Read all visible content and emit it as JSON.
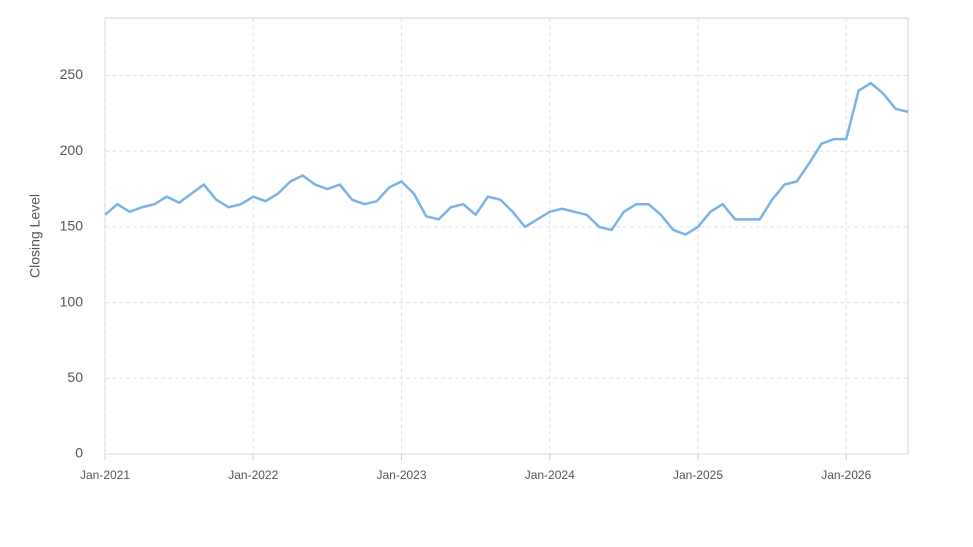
{
  "chart_data": {
    "type": "line",
    "y_label": "Closing Level",
    "x": [
      "2021-01",
      "2021-02",
      "2021-03",
      "2021-04",
      "2021-05",
      "2021-06",
      "2021-07",
      "2021-08",
      "2021-09",
      "2021-10",
      "2021-11",
      "2021-12",
      "2022-01",
      "2022-02",
      "2022-03",
      "2022-04",
      "2022-05",
      "2022-06",
      "2022-07",
      "2022-08",
      "2022-09",
      "2022-10",
      "2022-11",
      "2022-12",
      "2023-01",
      "2023-02",
      "2023-03",
      "2023-04",
      "2023-05",
      "2023-06",
      "2023-07",
      "2023-08",
      "2023-09",
      "2023-10",
      "2023-11",
      "2023-12",
      "2024-01",
      "2024-02",
      "2024-03",
      "2024-04",
      "2024-05",
      "2024-06",
      "2024-07",
      "2024-08",
      "2024-09",
      "2024-10",
      "2024-11",
      "2024-12",
      "2025-01",
      "2025-02",
      "2025-03",
      "2025-04",
      "2025-05",
      "2025-06",
      "2025-07",
      "2025-08",
      "2025-09",
      "2025-10",
      "2025-11",
      "2025-12",
      "2026-01",
      "2026-02",
      "2026-03",
      "2026-04",
      "2026-05",
      "2026-06"
    ],
    "series": [
      {
        "color": "#7ab3e6",
        "values": [
          158,
          165,
          160,
          163,
          165,
          170,
          166,
          172,
          178,
          168,
          163,
          165,
          170,
          167,
          172,
          180,
          184,
          178,
          175,
          178,
          168,
          165,
          167,
          176,
          180,
          172,
          157,
          155,
          163,
          165,
          158,
          170,
          168,
          160,
          150,
          155,
          160,
          162,
          160,
          158,
          150,
          148,
          160,
          165,
          165,
          158,
          148,
          145,
          150,
          160,
          165,
          155,
          155,
          155,
          168,
          178,
          180,
          192,
          205,
          208,
          208,
          240,
          245,
          238,
          228,
          226
        ]
      }
    ],
    "xlim": [
      "2021-01",
      "2026-06"
    ],
    "xticks": [
      {
        "value": "2021-01",
        "label": "Jan-2021"
      },
      {
        "value": "2022-01",
        "label": "Jan-2022"
      },
      {
        "value": "2023-01",
        "label": "Jan-2023"
      },
      {
        "value": "2024-01",
        "label": "Jan-2024"
      },
      {
        "value": "2025-01",
        "label": "Jan-2025"
      },
      {
        "value": "2026-01",
        "label": "Jan-2026"
      }
    ],
    "ylim": [
      0,
      288
    ],
    "yticks": [
      0,
      50,
      100,
      150,
      200,
      250
    ],
    "grid": true
  }
}
